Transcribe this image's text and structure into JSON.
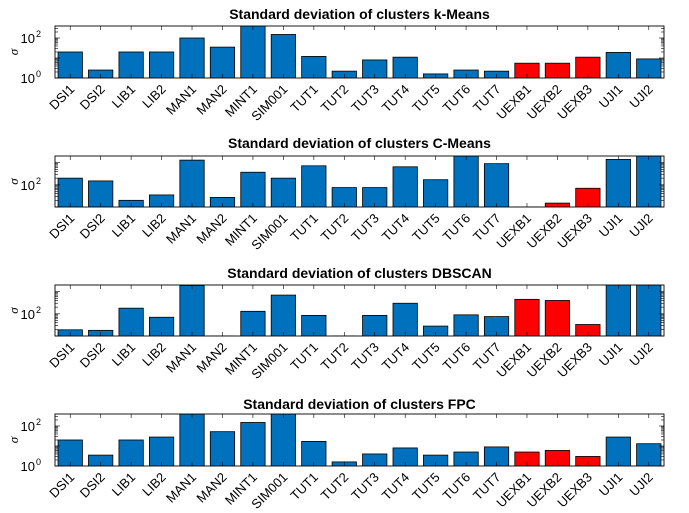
{
  "chart_data": [
    {
      "type": "bar",
      "title": "Standard deviation of clusters k-Means",
      "ylabel": "σ",
      "yscale": "log",
      "ytick_labels": [
        {
          "base": "10",
          "exp": "0"
        },
        {
          "base": "10",
          "exp": "2"
        }
      ],
      "categories": [
        "DSI1",
        "DSI2",
        "LIB1",
        "LIB2",
        "MAN1",
        "MAN2",
        "MINT1",
        "SIM001",
        "TUT1",
        "TUT2",
        "TUT3",
        "TUT4",
        "TUT5",
        "TUT6",
        "TUT7",
        "UEXB1",
        "UEXB2",
        "UEXB3",
        "UJI1",
        "UJI2"
      ],
      "values": [
        20,
        2.5,
        20,
        20,
        100,
        35,
        800,
        150,
        12,
        2.2,
        8,
        11,
        1.6,
        2.5,
        2.2,
        5.5,
        5.5,
        11,
        19,
        9
      ],
      "colors": [
        "#0072bd",
        "#0072bd",
        "#0072bd",
        "#0072bd",
        "#0072bd",
        "#0072bd",
        "#0072bd",
        "#0072bd",
        "#0072bd",
        "#0072bd",
        "#0072bd",
        "#0072bd",
        "#0072bd",
        "#0072bd",
        "#0072bd",
        "#ff0000",
        "#ff0000",
        "#ff0000",
        "#0072bd",
        "#0072bd"
      ]
    },
    {
      "type": "bar",
      "title": "Standard deviation of clusters C-Means",
      "ylabel": "σ",
      "yscale": "log",
      "ytick_labels": [
        {
          "base": "10",
          "exp": "2"
        }
      ],
      "categories": [
        "DSI1",
        "DSI2",
        "LIB1",
        "LIB2",
        "MAN1",
        "MAN2",
        "MINT1",
        "SIM001",
        "TUT1",
        "TUT2",
        "TUT3",
        "TUT4",
        "TUT5",
        "TUT6",
        "TUT7",
        "UEXB1",
        "UEXB2",
        "UEXB3",
        "UJI1",
        "UJI2"
      ],
      "values": [
        200,
        150,
        20,
        35,
        1300,
        27,
        370,
        200,
        720,
        75,
        75,
        650,
        170,
        2000,
        900,
        10,
        15,
        70,
        1400,
        2000
      ],
      "colors": [
        "#0072bd",
        "#0072bd",
        "#0072bd",
        "#0072bd",
        "#0072bd",
        "#0072bd",
        "#0072bd",
        "#0072bd",
        "#0072bd",
        "#0072bd",
        "#0072bd",
        "#0072bd",
        "#0072bd",
        "#0072bd",
        "#0072bd",
        "#ff0000",
        "#ff0000",
        "#ff0000",
        "#0072bd",
        "#0072bd"
      ]
    },
    {
      "type": "bar",
      "title": "Standard deviation of clusters DBSCAN",
      "ylabel": "σ",
      "yscale": "log",
      "ytick_labels": [
        {
          "base": "10",
          "exp": "2"
        }
      ],
      "categories": [
        "DSI1",
        "DSI2",
        "LIB1",
        "LIB2",
        "MAN1",
        "MAN2",
        "MINT1",
        "SIM001",
        "TUT1",
        "TUT2",
        "TUT3",
        "TUT4",
        "TUT5",
        "TUT6",
        "TUT7",
        "UEXB1",
        "UEXB2",
        "UEXB3",
        "UJI1",
        "UJI2"
      ],
      "values": [
        19,
        18,
        180,
        70,
        1900,
        9,
        130,
        700,
        85,
        9,
        85,
        300,
        28,
        90,
        75,
        450,
        400,
        33,
        2000,
        2000
      ],
      "colors": [
        "#0072bd",
        "#0072bd",
        "#0072bd",
        "#0072bd",
        "#0072bd",
        "#0072bd",
        "#0072bd",
        "#0072bd",
        "#0072bd",
        "#0072bd",
        "#0072bd",
        "#0072bd",
        "#0072bd",
        "#0072bd",
        "#0072bd",
        "#ff0000",
        "#ff0000",
        "#ff0000",
        "#0072bd",
        "#0072bd"
      ]
    },
    {
      "type": "bar",
      "title": "Standard deviation of clusters FPC",
      "ylabel": "σ",
      "yscale": "log",
      "ytick_labels": [
        {
          "base": "10",
          "exp": "0"
        },
        {
          "base": "10",
          "exp": "2"
        }
      ],
      "categories": [
        "DSI1",
        "DSI2",
        "LIB1",
        "LIB2",
        "MAN1",
        "MAN2",
        "MINT1",
        "SIM001",
        "TUT1",
        "TUT2",
        "TUT3",
        "TUT4",
        "TUT5",
        "TUT6",
        "TUT7",
        "UEXB1",
        "UEXB2",
        "UEXB3",
        "UJI1",
        "UJI2"
      ],
      "values": [
        20,
        3.5,
        20,
        28,
        400,
        52,
        150,
        400,
        17,
        1.6,
        4,
        8,
        3.5,
        5,
        9,
        5,
        6,
        3,
        28,
        13
      ],
      "colors": [
        "#0072bd",
        "#0072bd",
        "#0072bd",
        "#0072bd",
        "#0072bd",
        "#0072bd",
        "#0072bd",
        "#0072bd",
        "#0072bd",
        "#0072bd",
        "#0072bd",
        "#0072bd",
        "#0072bd",
        "#0072bd",
        "#0072bd",
        "#ff0000",
        "#ff0000",
        "#ff0000",
        "#0072bd",
        "#0072bd"
      ]
    }
  ]
}
